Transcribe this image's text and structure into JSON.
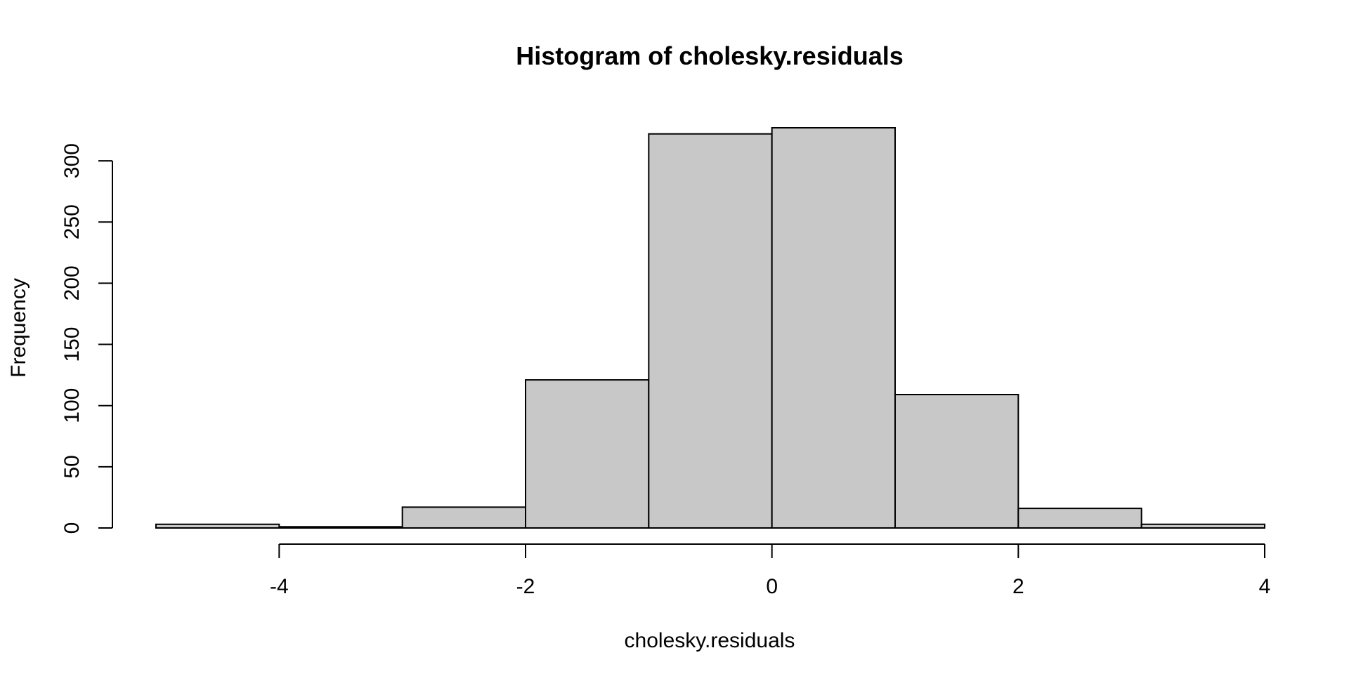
{
  "chart_data": {
    "type": "bar",
    "histogram": true,
    "title": "Histogram of cholesky.residuals",
    "xlabel": "cholesky.residuals",
    "ylabel": "Frequency",
    "bins": [
      {
        "start": -5,
        "end": -4,
        "count": 3
      },
      {
        "start": -4,
        "end": -3,
        "count": 1
      },
      {
        "start": -3,
        "end": -2,
        "count": 17
      },
      {
        "start": -2,
        "end": -1,
        "count": 121
      },
      {
        "start": -1,
        "end": 0,
        "count": 322
      },
      {
        "start": 0,
        "end": 1,
        "count": 327
      },
      {
        "start": 1,
        "end": 2,
        "count": 109
      },
      {
        "start": 2,
        "end": 3,
        "count": 16
      },
      {
        "start": 3,
        "end": 4,
        "count": 3
      }
    ],
    "x_ticks": [
      -4,
      -2,
      0,
      2,
      4
    ],
    "x_tick_labels": [
      "-4",
      "-2",
      "0",
      "2",
      "4"
    ],
    "y_ticks": [
      0,
      50,
      100,
      150,
      200,
      250,
      300
    ],
    "y_tick_labels": [
      "0",
      "50",
      "100",
      "150",
      "200",
      "250",
      "300"
    ],
    "xlim": [
      -5,
      4
    ],
    "ylim": [
      0,
      327
    ],
    "bar_color": "#c8c8c8",
    "grid": false,
    "legend": "none"
  }
}
